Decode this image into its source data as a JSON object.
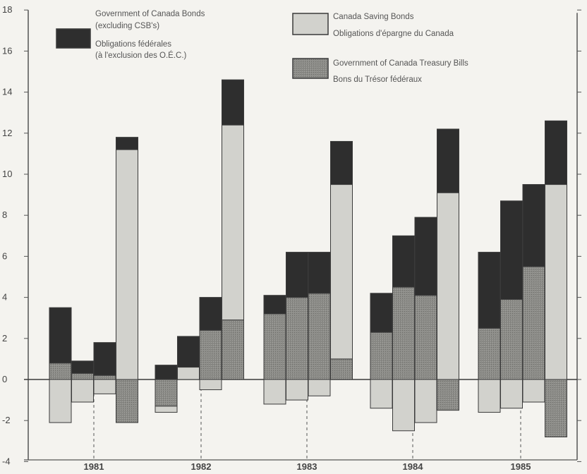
{
  "chart_data": {
    "type": "bar",
    "stacked": true,
    "ylim": [
      -4,
      18
    ],
    "yticks": [
      -4,
      -2,
      0,
      2,
      4,
      6,
      8,
      10,
      12,
      14,
      16,
      18
    ],
    "ytick_labels": [
      "-4",
      "-2",
      "0",
      "2",
      "4",
      "6",
      "8",
      "10",
      "12",
      "14",
      "16",
      "18"
    ],
    "grid": false,
    "legend_position": "top",
    "years": [
      "1981",
      "1982",
      "1983",
      "1984",
      "1985"
    ],
    "series": [
      {
        "name_lines": [
          "Government of Canada Bonds",
          "(excluding CSB's)",
          "Obligations fédérales",
          "(à l'exclusion des O.É.C.)"
        ],
        "color": "#2e2e2e"
      },
      {
        "name_lines": [
          "Canada Saving Bonds",
          "Obligations d'épargne du Canada"
        ],
        "color": "#d2d2cd"
      },
      {
        "name_lines": [
          "Government of Canada Treasury Bills",
          "Bons du Trésor fédéraux"
        ],
        "color": "#8c8c88"
      }
    ],
    "quarters": [
      {
        "year": "1981",
        "q": 1,
        "tbills": 0.8,
        "csb": -2.1,
        "bonds": 2.7
      },
      {
        "year": "1981",
        "q": 2,
        "tbills": 0.3,
        "csb": -1.1,
        "bonds": 0.6
      },
      {
        "year": "1981",
        "q": 3,
        "tbills": 0.2,
        "csb": -0.7,
        "bonds": 1.6
      },
      {
        "year": "1981",
        "q": 4,
        "tbills": -2.1,
        "csb": 11.2,
        "bonds": 0.6
      },
      {
        "year": "1982",
        "q": 1,
        "tbills": -1.3,
        "csb": -0.3,
        "bonds": 0.7
      },
      {
        "year": "1982",
        "q": 2,
        "tbills": 0.0,
        "csb": 0.6,
        "bonds": 1.5
      },
      {
        "year": "1982",
        "q": 3,
        "tbills": 2.4,
        "csb": -0.5,
        "bonds": 1.6
      },
      {
        "year": "1982",
        "q": 4,
        "tbills": 2.9,
        "csb": 9.5,
        "bonds": 2.2
      },
      {
        "year": "1983",
        "q": 1,
        "tbills": 3.2,
        "csb": -1.2,
        "bonds": 0.9
      },
      {
        "year": "1983",
        "q": 2,
        "tbills": 4.0,
        "csb": -1.0,
        "bonds": 2.2
      },
      {
        "year": "1983",
        "q": 3,
        "tbills": 4.2,
        "csb": -0.8,
        "bonds": 2.0
      },
      {
        "year": "1983",
        "q": 4,
        "tbills": 1.0,
        "csb": 8.5,
        "bonds": 2.1
      },
      {
        "year": "1984",
        "q": 1,
        "tbills": 2.3,
        "csb": -1.4,
        "bonds": 1.9
      },
      {
        "year": "1984",
        "q": 2,
        "tbills": 4.5,
        "csb": -2.5,
        "bonds": 2.5
      },
      {
        "year": "1984",
        "q": 3,
        "tbills": 4.1,
        "csb": -2.1,
        "bonds": 3.8
      },
      {
        "year": "1984",
        "q": 4,
        "tbills": -1.5,
        "csb": 9.1,
        "bonds": 3.1
      },
      {
        "year": "1985",
        "q": 1,
        "tbills": 2.5,
        "csb": -1.6,
        "bonds": 3.7
      },
      {
        "year": "1985",
        "q": 2,
        "tbills": 3.9,
        "csb": -1.4,
        "bonds": 4.8
      },
      {
        "year": "1985",
        "q": 3,
        "tbills": 5.5,
        "csb": -1.1,
        "bonds": 4.0
      },
      {
        "year": "1985",
        "q": 4,
        "tbills": -2.8,
        "csb": 9.5,
        "bonds": 3.1
      }
    ]
  }
}
